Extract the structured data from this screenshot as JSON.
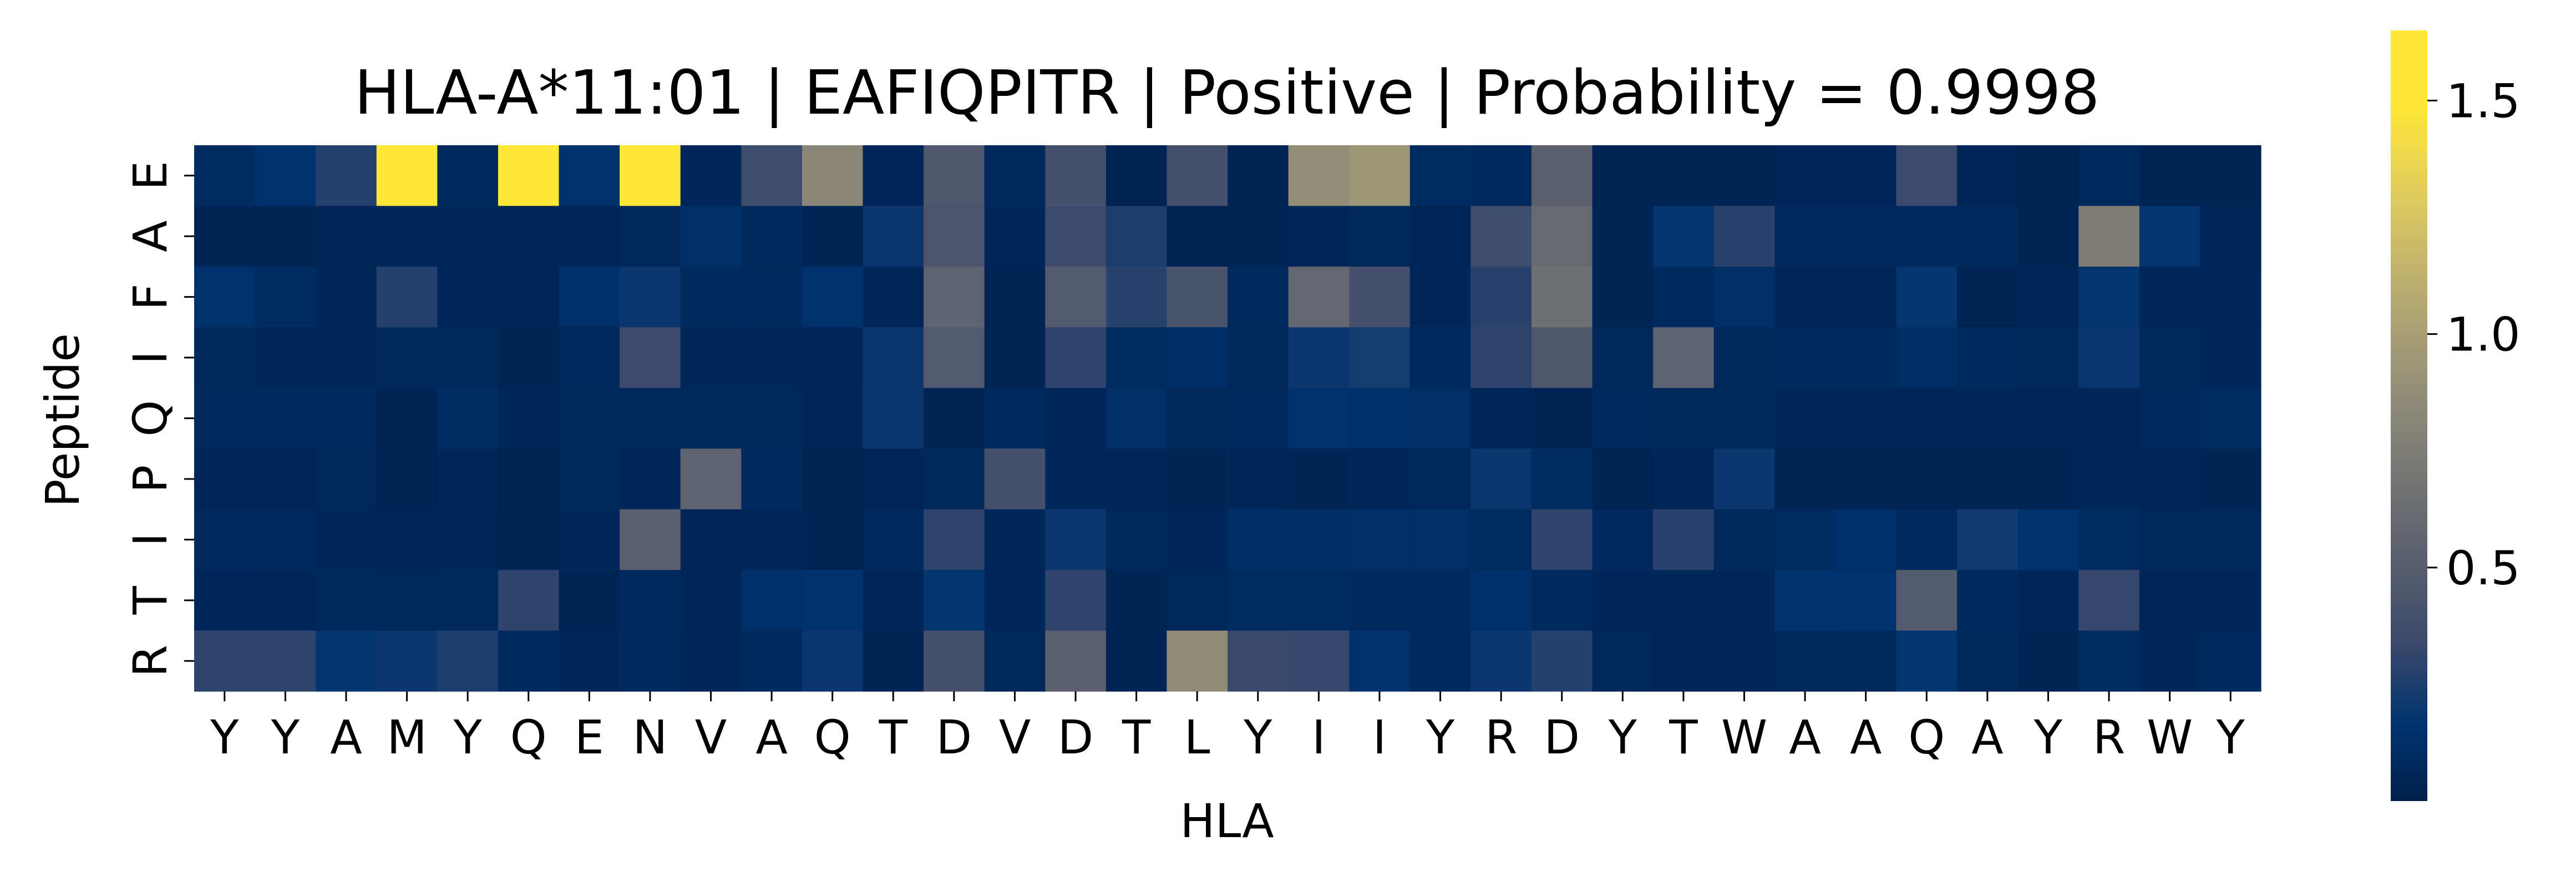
{
  "chart_data": {
    "type": "heatmap",
    "title": "HLA-A*11:01 | EAFIQPITR | Positive | Probability = 0.9998",
    "xlabel": "HLA",
    "ylabel": "Peptide",
    "x_categories": [
      "Y",
      "Y",
      "A",
      "M",
      "Y",
      "Q",
      "E",
      "N",
      "V",
      "A",
      "Q",
      "T",
      "D",
      "V",
      "D",
      "T",
      "L",
      "Y",
      "I",
      "I",
      "Y",
      "R",
      "D",
      "Y",
      "T",
      "W",
      "A",
      "A",
      "Q",
      "A",
      "Y",
      "R",
      "W",
      "Y"
    ],
    "y_categories": [
      "E",
      "A",
      "F",
      "I",
      "Q",
      "P",
      "I",
      "T",
      "R"
    ],
    "values": [
      [
        0.1,
        0.15,
        0.27,
        1.65,
        0.08,
        1.65,
        0.15,
        1.65,
        0.05,
        0.36,
        0.82,
        0.05,
        0.45,
        0.07,
        0.4,
        0.03,
        0.4,
        0.04,
        0.88,
        0.93,
        0.1,
        0.08,
        0.52,
        0.04,
        0.04,
        0.03,
        0.06,
        0.06,
        0.35,
        0.05,
        0.03,
        0.08,
        0.03,
        0.04
      ],
      [
        0.04,
        0.04,
        0.05,
        0.06,
        0.06,
        0.05,
        0.05,
        0.07,
        0.13,
        0.08,
        0.04,
        0.2,
        0.43,
        0.06,
        0.35,
        0.25,
        0.03,
        0.03,
        0.05,
        0.07,
        0.05,
        0.37,
        0.6,
        0.04,
        0.18,
        0.28,
        0.09,
        0.09,
        0.09,
        0.09,
        0.04,
        0.75,
        0.18,
        0.05
      ],
      [
        0.15,
        0.1,
        0.05,
        0.27,
        0.06,
        0.05,
        0.14,
        0.2,
        0.08,
        0.08,
        0.15,
        0.06,
        0.55,
        0.04,
        0.48,
        0.28,
        0.42,
        0.08,
        0.58,
        0.4,
        0.06,
        0.28,
        0.65,
        0.04,
        0.08,
        0.13,
        0.05,
        0.05,
        0.18,
        0.03,
        0.05,
        0.18,
        0.06,
        0.06
      ],
      [
        0.07,
        0.06,
        0.06,
        0.07,
        0.07,
        0.04,
        0.08,
        0.35,
        0.06,
        0.06,
        0.05,
        0.2,
        0.48,
        0.04,
        0.3,
        0.1,
        0.11,
        0.07,
        0.2,
        0.23,
        0.08,
        0.3,
        0.45,
        0.07,
        0.55,
        0.07,
        0.08,
        0.09,
        0.11,
        0.08,
        0.07,
        0.2,
        0.07,
        0.06
      ],
      [
        0.08,
        0.08,
        0.08,
        0.04,
        0.1,
        0.06,
        0.07,
        0.07,
        0.07,
        0.07,
        0.06,
        0.2,
        0.04,
        0.09,
        0.05,
        0.12,
        0.07,
        0.08,
        0.15,
        0.14,
        0.12,
        0.05,
        0.04,
        0.08,
        0.07,
        0.07,
        0.06,
        0.06,
        0.05,
        0.05,
        0.05,
        0.05,
        0.08,
        0.1
      ],
      [
        0.05,
        0.05,
        0.07,
        0.03,
        0.06,
        0.03,
        0.07,
        0.06,
        0.55,
        0.09,
        0.03,
        0.05,
        0.07,
        0.4,
        0.06,
        0.06,
        0.04,
        0.06,
        0.04,
        0.05,
        0.07,
        0.2,
        0.1,
        0.03,
        0.05,
        0.2,
        0.04,
        0.04,
        0.03,
        0.04,
        0.04,
        0.06,
        0.05,
        0.04
      ],
      [
        0.09,
        0.08,
        0.06,
        0.05,
        0.06,
        0.04,
        0.06,
        0.52,
        0.06,
        0.06,
        0.04,
        0.08,
        0.3,
        0.06,
        0.2,
        0.07,
        0.05,
        0.11,
        0.11,
        0.12,
        0.12,
        0.1,
        0.3,
        0.09,
        0.28,
        0.07,
        0.1,
        0.14,
        0.08,
        0.22,
        0.16,
        0.1,
        0.07,
        0.07
      ],
      [
        0.06,
        0.06,
        0.07,
        0.07,
        0.07,
        0.3,
        0.04,
        0.09,
        0.06,
        0.14,
        0.16,
        0.06,
        0.18,
        0.06,
        0.3,
        0.04,
        0.07,
        0.1,
        0.1,
        0.09,
        0.08,
        0.14,
        0.09,
        0.06,
        0.06,
        0.06,
        0.16,
        0.15,
        0.48,
        0.08,
        0.06,
        0.32,
        0.06,
        0.06
      ],
      [
        0.3,
        0.3,
        0.18,
        0.2,
        0.25,
        0.09,
        0.06,
        0.08,
        0.05,
        0.08,
        0.2,
        0.04,
        0.4,
        0.07,
        0.52,
        0.04,
        0.86,
        0.33,
        0.32,
        0.16,
        0.08,
        0.2,
        0.27,
        0.07,
        0.05,
        0.05,
        0.07,
        0.07,
        0.18,
        0.07,
        0.04,
        0.1,
        0.06,
        0.08
      ]
    ],
    "vmin": 0.0,
    "vmax": 1.65,
    "colormap": "cividis",
    "colorbar_ticks": [
      0.5,
      1.0,
      1.5
    ],
    "colorbar_tick_labels": [
      "0.5",
      "1.0",
      "1.5"
    ],
    "grid": false,
    "colorbar_placement": "right"
  }
}
